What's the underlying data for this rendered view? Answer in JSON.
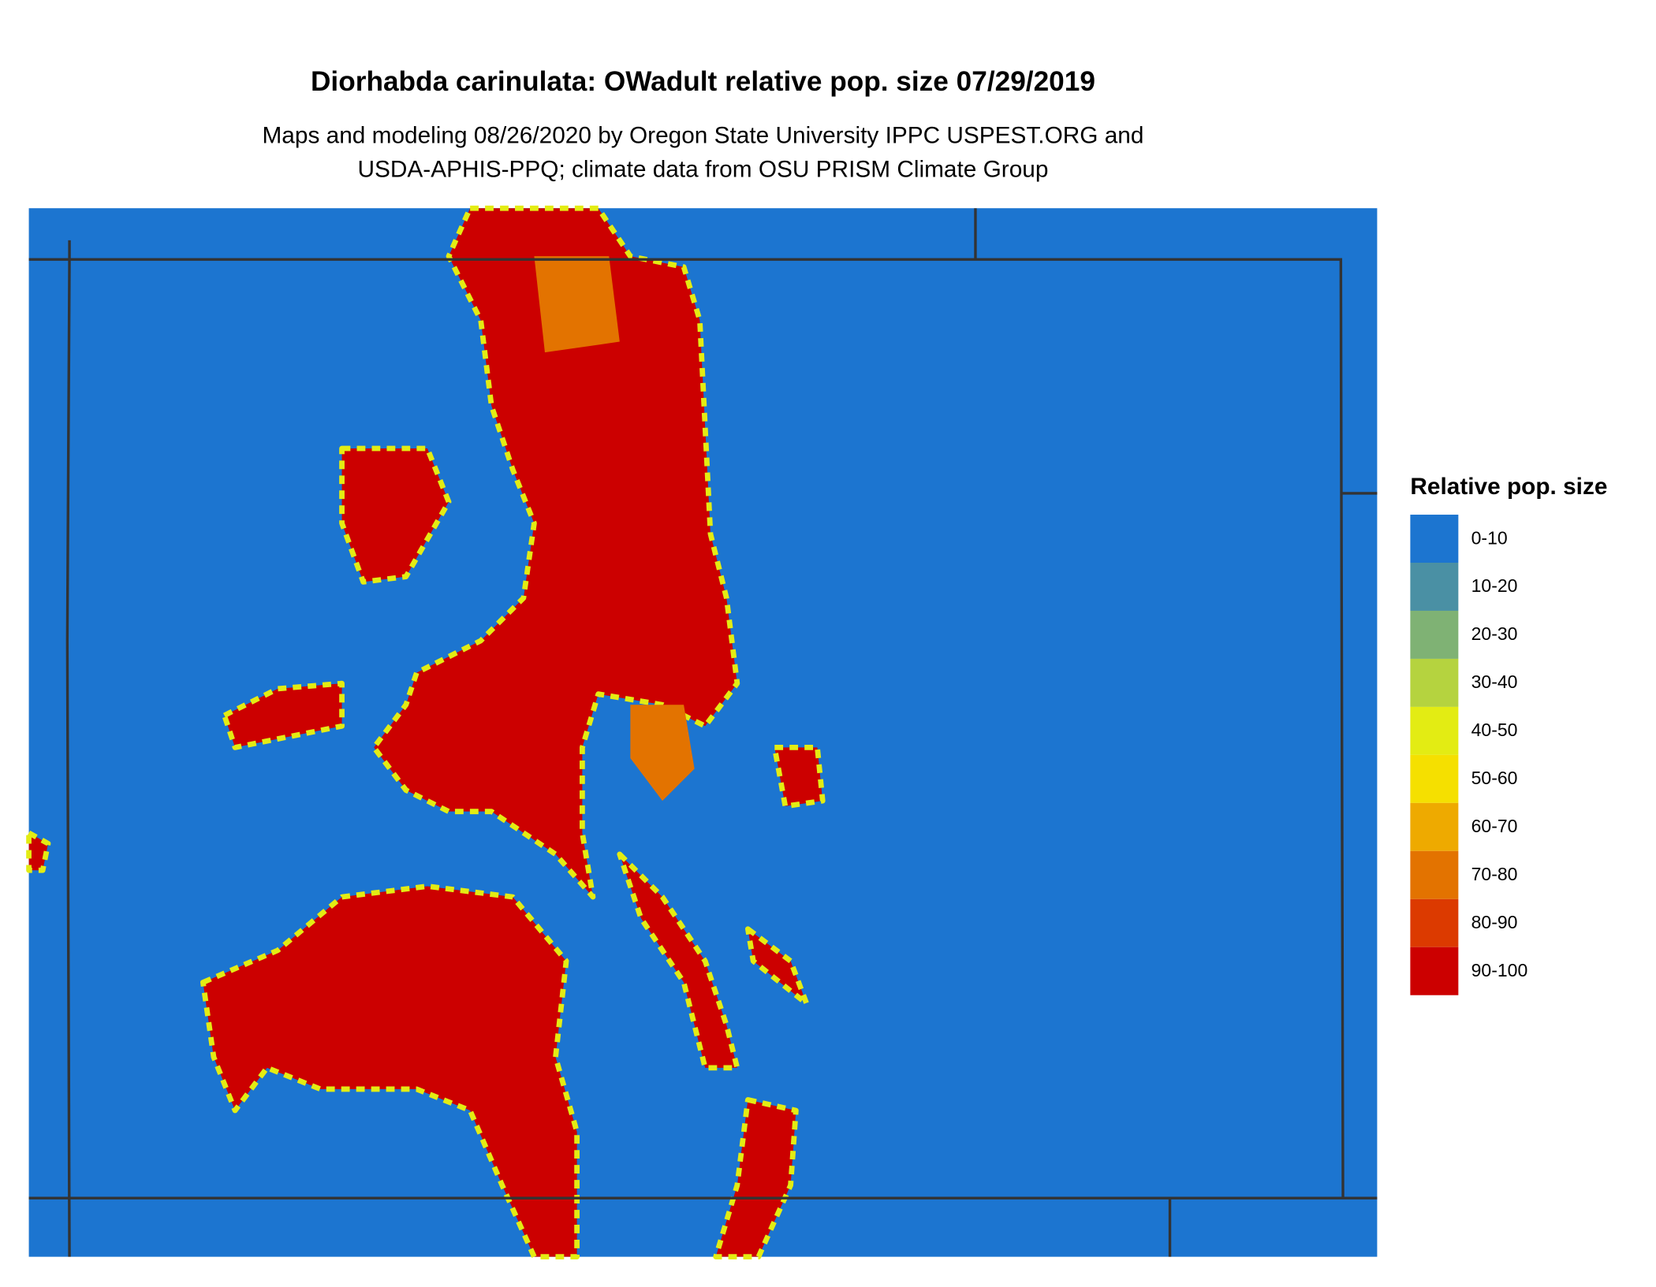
{
  "title": "Diorhabda carinulata: OWadult relative pop. size 07/29/2019",
  "subtitle": [
    "Maps and modeling 08/26/2020 by Oregon State University IPPC USPEST.ORG and",
    "USDA-APHIS-PPQ; climate data from OSU PRISM Climate Group"
  ],
  "legend": {
    "title": "Relative pop. size",
    "items": [
      {
        "label": "0-10",
        "color": "#1c75d0"
      },
      {
        "label": "10-20",
        "color": "#4a90a4"
      },
      {
        "label": "20-30",
        "color": "#7fb274"
      },
      {
        "label": "30-40",
        "color": "#b5d33f"
      },
      {
        "label": "40-50",
        "color": "#e3ec13"
      },
      {
        "label": "50-60",
        "color": "#f5e000"
      },
      {
        "label": "60-70",
        "color": "#eeaa00"
      },
      {
        "label": "70-80",
        "color": "#e37300"
      },
      {
        "label": "80-90",
        "color": "#dc3a00"
      },
      {
        "label": "90-100",
        "color": "#cc0000"
      }
    ]
  }
}
